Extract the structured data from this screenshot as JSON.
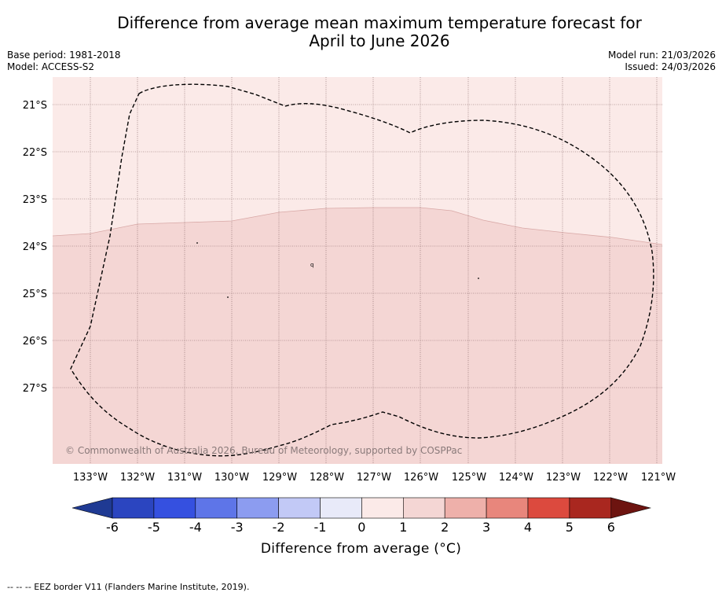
{
  "title": {
    "line1": "Difference from average mean maximum temperature forecast for",
    "line2": "April to June 2026"
  },
  "meta": {
    "base_period": "Base period: 1981-2018",
    "model": "Model: ACCESS-S2",
    "model_run": "Model run: 21/03/2026",
    "issued": "Issued: 24/03/2026"
  },
  "map": {
    "lon_labels": [
      "133°W",
      "132°W",
      "131°W",
      "130°W",
      "129°W",
      "128°W",
      "127°W",
      "126°W",
      "125°W",
      "124°W",
      "123°W",
      "122°W",
      "121°W"
    ],
    "lat_labels": [
      "21°S",
      "22°S",
      "23°S",
      "24°S",
      "25°S",
      "26°S",
      "27°S"
    ],
    "copyright": "© Commonwealth of Australia 2026, Bureau of Meteorology, supported by COSPPac",
    "colors": {
      "band_0_1": "#fbeae8",
      "band_1_2": "#f4d6d4",
      "eez_line": "#000000"
    }
  },
  "colorbar": {
    "ticks": [
      "-6",
      "-5",
      "-4",
      "-3",
      "-2",
      "-1",
      "0",
      "1",
      "2",
      "3",
      "4",
      "5",
      "6"
    ],
    "label": "Difference from average ($^\\circ$C)",
    "label_display": "Difference from average (°C)",
    "colors": [
      "#1f3a93",
      "#2b45c0",
      "#3550e0",
      "#5e75e8",
      "#8c9cf0",
      "#c2c9f6",
      "#e8eaf9",
      "#fbeae8",
      "#f4d6d4",
      "#eeb0aa",
      "#e8867c",
      "#dc4a3e",
      "#a9271f",
      "#6d1410"
    ]
  },
  "footnote": "--  --  -- EEZ border V11 (Flanders Marine Institute, 2019)."
}
